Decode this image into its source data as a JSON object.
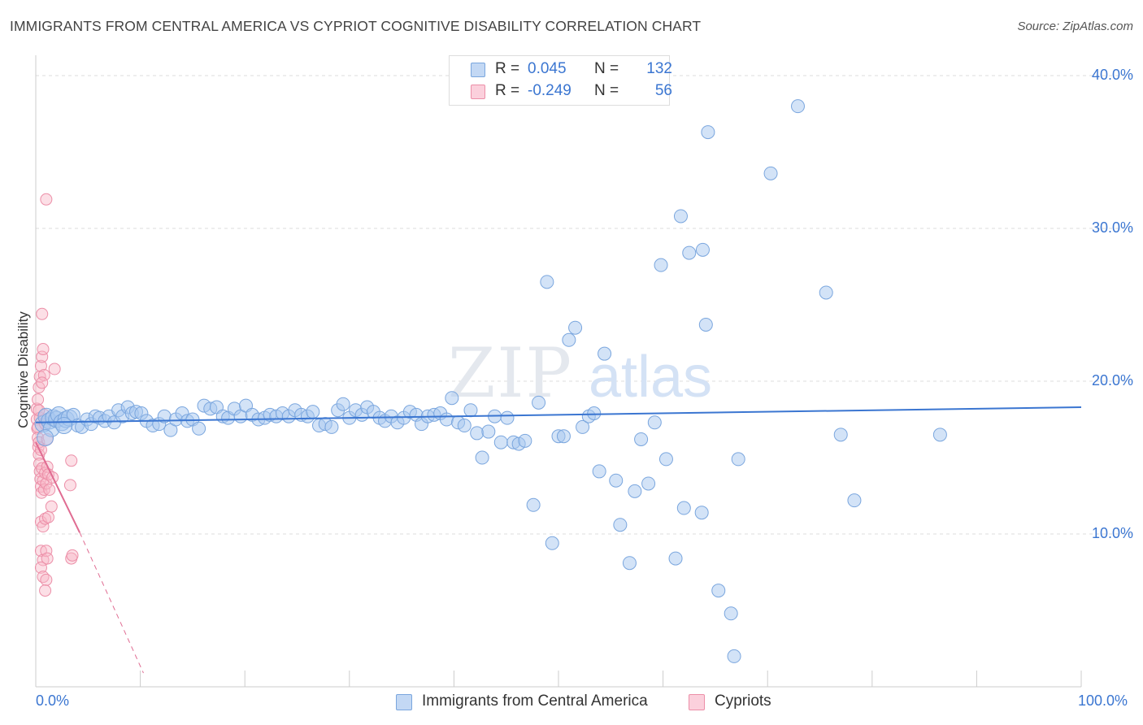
{
  "header": {
    "title": "IMMIGRANTS FROM CENTRAL AMERICA VS CYPRIOT COGNITIVE DISABILITY CORRELATION CHART",
    "source": "Source: ZipAtlas.com"
  },
  "watermark": {
    "part1": "ZIP",
    "part2": "atlas"
  },
  "legend": {
    "rows": [
      {
        "r_label": "R =",
        "r_value": "0.045",
        "n_label": "N =",
        "n_value": "132",
        "color": "#a8c8f0"
      },
      {
        "r_label": "R =",
        "r_value": "-0.249",
        "n_label": "N =",
        "n_value": "56",
        "color": "#f8b8c8"
      }
    ]
  },
  "series_legend": {
    "series1": "Immigrants from Central America",
    "series2": "Cypriots"
  },
  "colors": {
    "blue_fill": "#a8c8f0",
    "blue_stroke": "#7aa6de",
    "blue_line": "#3b76d1",
    "pink_fill": "#f8b8c8",
    "pink_stroke": "#ec8fa8",
    "pink_line": "#e06c92",
    "accent_text": "#3b76d1",
    "grid": "#dddddd"
  },
  "chart_data": {
    "type": "scatter",
    "title": "IMMIGRANTS FROM CENTRAL AMERICA VS CYPRIOT COGNITIVE DISABILITY CORRELATION CHART",
    "xlabel": "",
    "ylabel": "Cognitive Disability",
    "xlim": [
      0,
      100
    ],
    "ylim": [
      0,
      40.8
    ],
    "x_tick_labels": [
      "0.0%",
      "100.0%"
    ],
    "y_ticks": [
      10,
      20,
      30,
      40
    ],
    "y_tick_labels": [
      "10.0%",
      "20.0%",
      "30.0%",
      "40.0%"
    ],
    "grid": "horizontal dashed",
    "legend_position": "top-center",
    "series": [
      {
        "name": "Immigrants from Central America",
        "color": "#a8c8f0",
        "trend": {
          "x": [
            0,
            100
          ],
          "y": [
            17.3,
            18.3
          ],
          "style": "solid"
        },
        "points": [
          [
            0.7,
            17.2
          ],
          [
            1.0,
            17.7
          ],
          [
            1.3,
            17.4
          ],
          [
            1.5,
            16.9
          ],
          [
            1.7,
            17.6
          ],
          [
            2.0,
            17.5
          ],
          [
            2.2,
            17.8
          ],
          [
            2.5,
            17.3
          ],
          [
            2.9,
            17.5
          ],
          [
            3.2,
            17.6
          ],
          [
            3.6,
            17.8
          ],
          [
            4.0,
            17.1
          ],
          [
            4.4,
            17.0
          ],
          [
            4.9,
            17.5
          ],
          [
            5.3,
            17.2
          ],
          [
            5.7,
            17.7
          ],
          [
            6.1,
            17.6
          ],
          [
            6.6,
            17.4
          ],
          [
            7.0,
            17.7
          ],
          [
            7.5,
            17.3
          ],
          [
            7.9,
            18.1
          ],
          [
            8.3,
            17.7
          ],
          [
            8.8,
            18.3
          ],
          [
            9.2,
            17.9
          ],
          [
            9.6,
            18.0
          ],
          [
            10.1,
            17.9
          ],
          [
            10.6,
            17.4
          ],
          [
            11.2,
            17.1
          ],
          [
            11.8,
            17.2
          ],
          [
            12.3,
            17.7
          ],
          [
            12.9,
            16.8
          ],
          [
            13.4,
            17.5
          ],
          [
            14.0,
            17.9
          ],
          [
            14.5,
            17.4
          ],
          [
            15.0,
            17.5
          ],
          [
            15.6,
            16.9
          ],
          [
            16.1,
            18.4
          ],
          [
            16.7,
            18.2
          ],
          [
            17.3,
            18.3
          ],
          [
            17.9,
            17.7
          ],
          [
            18.4,
            17.6
          ],
          [
            19.0,
            18.2
          ],
          [
            19.6,
            17.7
          ],
          [
            20.1,
            18.4
          ],
          [
            20.7,
            17.8
          ],
          [
            21.3,
            17.5
          ],
          [
            21.9,
            17.6
          ],
          [
            22.4,
            17.8
          ],
          [
            23.0,
            17.7
          ],
          [
            23.6,
            17.9
          ],
          [
            24.2,
            17.7
          ],
          [
            24.8,
            18.1
          ],
          [
            25.4,
            17.8
          ],
          [
            26.0,
            17.7
          ],
          [
            26.5,
            18.0
          ],
          [
            27.1,
            17.1
          ],
          [
            27.7,
            17.2
          ],
          [
            28.3,
            17.0
          ],
          [
            28.9,
            18.1
          ],
          [
            29.4,
            18.5
          ],
          [
            30.0,
            17.6
          ],
          [
            30.6,
            18.1
          ],
          [
            31.2,
            17.8
          ],
          [
            31.7,
            18.3
          ],
          [
            32.3,
            18.0
          ],
          [
            32.9,
            17.6
          ],
          [
            33.4,
            17.4
          ],
          [
            34.0,
            17.7
          ],
          [
            34.6,
            17.3
          ],
          [
            35.2,
            17.6
          ],
          [
            35.8,
            18.0
          ],
          [
            36.4,
            17.8
          ],
          [
            36.9,
            17.2
          ],
          [
            37.5,
            17.7
          ],
          [
            38.1,
            17.8
          ],
          [
            38.7,
            17.9
          ],
          [
            39.3,
            17.5
          ],
          [
            39.8,
            18.9
          ],
          [
            40.4,
            17.3
          ],
          [
            41.0,
            17.1
          ],
          [
            41.6,
            18.1
          ],
          [
            42.2,
            16.6
          ],
          [
            42.7,
            15.0
          ],
          [
            43.3,
            16.7
          ],
          [
            43.9,
            17.7
          ],
          [
            44.5,
            16.0
          ],
          [
            45.1,
            17.6
          ],
          [
            45.7,
            16.0
          ],
          [
            46.2,
            15.9
          ],
          [
            46.8,
            16.1
          ],
          [
            47.6,
            11.9
          ],
          [
            48.1,
            18.6
          ],
          [
            48.9,
            26.5
          ],
          [
            49.4,
            9.4
          ],
          [
            50.0,
            16.4
          ],
          [
            50.5,
            16.4
          ],
          [
            51.0,
            22.7
          ],
          [
            51.6,
            23.5
          ],
          [
            52.3,
            17.0
          ],
          [
            52.9,
            17.7
          ],
          [
            53.4,
            17.9
          ],
          [
            53.9,
            14.1
          ],
          [
            54.4,
            21.8
          ],
          [
            55.5,
            13.5
          ],
          [
            55.9,
            10.6
          ],
          [
            56.8,
            8.1
          ],
          [
            57.3,
            12.8
          ],
          [
            57.9,
            16.2
          ],
          [
            58.6,
            13.3
          ],
          [
            59.2,
            17.3
          ],
          [
            59.8,
            27.6
          ],
          [
            60.3,
            14.9
          ],
          [
            61.2,
            8.4
          ],
          [
            61.7,
            30.8
          ],
          [
            62.0,
            11.7
          ],
          [
            62.5,
            28.4
          ],
          [
            63.7,
            11.4
          ],
          [
            63.8,
            28.6
          ],
          [
            64.1,
            23.7
          ],
          [
            64.3,
            36.3
          ],
          [
            65.3,
            6.3
          ],
          [
            66.5,
            4.8
          ],
          [
            66.8,
            2.0
          ],
          [
            67.2,
            14.9
          ],
          [
            70.3,
            33.6
          ],
          [
            72.9,
            38.0
          ],
          [
            75.6,
            25.8
          ],
          [
            77.0,
            16.5
          ],
          [
            78.3,
            12.2
          ],
          [
            86.5,
            16.5
          ],
          [
            0.9,
            16.3
          ],
          [
            2.7,
            17.1
          ]
        ]
      },
      {
        "name": "Cypriots",
        "color": "#f8b8c8",
        "trend": {
          "x": [
            0,
            4.2
          ],
          "y": [
            16.0,
            10.1
          ],
          "style": "solid",
          "extension": {
            "x": [
              4.2,
              10.3
            ],
            "y": [
              10.1,
              0.9
            ],
            "style": "dashed"
          }
        },
        "points": [
          [
            0.1,
            17.5
          ],
          [
            0.15,
            16.9
          ],
          [
            0.2,
            16.3
          ],
          [
            0.25,
            15.7
          ],
          [
            0.3,
            15.2
          ],
          [
            0.35,
            14.6
          ],
          [
            0.4,
            14.1
          ],
          [
            0.45,
            13.6
          ],
          [
            0.5,
            13.1
          ],
          [
            0.55,
            12.7
          ],
          [
            0.1,
            18.2
          ],
          [
            0.2,
            18.8
          ],
          [
            0.3,
            19.6
          ],
          [
            0.4,
            20.3
          ],
          [
            0.5,
            21.0
          ],
          [
            0.6,
            21.6
          ],
          [
            0.7,
            22.1
          ],
          [
            0.6,
            24.4
          ],
          [
            1.0,
            31.9
          ],
          [
            0.2,
            17.0
          ],
          [
            0.3,
            16.0
          ],
          [
            0.5,
            15.5
          ],
          [
            0.6,
            14.3
          ],
          [
            0.7,
            13.5
          ],
          [
            0.8,
            12.9
          ],
          [
            0.9,
            14.0
          ],
          [
            1.0,
            13.3
          ],
          [
            1.1,
            14.4
          ],
          [
            1.2,
            13.9
          ],
          [
            1.3,
            12.9
          ],
          [
            0.5,
            10.8
          ],
          [
            0.7,
            10.5
          ],
          [
            0.9,
            11.0
          ],
          [
            1.2,
            11.1
          ],
          [
            1.5,
            11.8
          ],
          [
            0.5,
            8.9
          ],
          [
            0.7,
            8.3
          ],
          [
            1.0,
            8.9
          ],
          [
            1.1,
            8.4
          ],
          [
            0.5,
            7.8
          ],
          [
            0.7,
            7.2
          ],
          [
            1.0,
            7.0
          ],
          [
            0.9,
            6.3
          ],
          [
            0.8,
            20.4
          ],
          [
            0.6,
            19.9
          ],
          [
            1.1,
            16.2
          ],
          [
            1.8,
            20.8
          ],
          [
            1.6,
            13.7
          ],
          [
            3.3,
            13.2
          ],
          [
            3.4,
            14.8
          ],
          [
            3.4,
            8.4
          ],
          [
            3.5,
            8.6
          ],
          [
            0.4,
            17.6
          ],
          [
            0.8,
            17.8
          ],
          [
            0.3,
            18.1
          ],
          [
            0.9,
            17.2
          ]
        ]
      }
    ]
  }
}
